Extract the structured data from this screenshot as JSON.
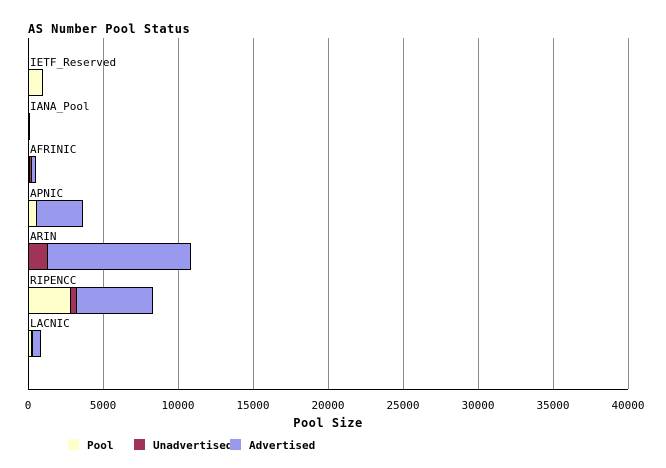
{
  "title": "AS Number Pool Status",
  "chart_data": {
    "type": "bar",
    "orientation": "horizontal",
    "stacked": true,
    "title": "AS Number Pool Status",
    "xlabel": "Pool Size",
    "ylabel": "",
    "xlim": [
      0,
      40000
    ],
    "xticks": [
      0,
      5000,
      10000,
      15000,
      20000,
      25000,
      30000,
      35000,
      40000
    ],
    "grid": "vertical",
    "legend_position": "bottom",
    "categories": [
      "IETF_Reserved",
      "IANA_Pool",
      "AFRINIC",
      "APNIC",
      "ARIN",
      "RIPENCC",
      "LACNIC"
    ],
    "series": [
      {
        "name": "Pool",
        "color": "#FFFFCC",
        "values": [
          1000,
          0,
          70,
          600,
          0,
          2850,
          270
        ]
      },
      {
        "name": "Unadvertised",
        "color": "#A03358",
        "values": [
          0,
          0,
          200,
          0,
          1300,
          450,
          130
        ]
      },
      {
        "name": "Advertised",
        "color": "#9999EE",
        "values": [
          0,
          0,
          330,
          3130,
          9600,
          5100,
          600
        ]
      }
    ],
    "totals": [
      1000,
      0,
      600,
      3730,
      10900,
      8400,
      1000
    ]
  },
  "colors": {
    "pool": "#FFFFCC",
    "unadvertised": "#A03358",
    "advertised": "#9999EE",
    "gridline": "#8A8A8A",
    "axis": "#000000",
    "background": "#FFFFFF",
    "text": "#000000"
  },
  "legend": {
    "items": [
      {
        "label": "Pool",
        "color": "#FFFFCC"
      },
      {
        "label": "Unadvertised",
        "color": "#A03358"
      },
      {
        "label": "Advertised",
        "color": "#9999EE"
      }
    ]
  },
  "axis": {
    "xlabel": "Pool Size",
    "tick_labels": [
      "0",
      "5000",
      "10000",
      "15000",
      "20000",
      "25000",
      "30000",
      "35000",
      "40000"
    ]
  }
}
